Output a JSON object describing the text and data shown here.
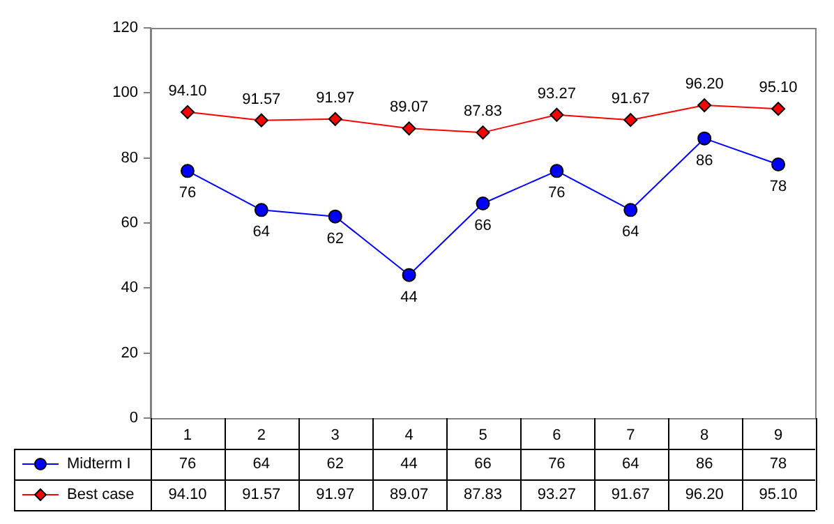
{
  "chart_data": {
    "type": "line",
    "categories": [
      "1",
      "2",
      "3",
      "4",
      "5",
      "6",
      "7",
      "8",
      "9"
    ],
    "series": [
      {
        "name": "Midterm I",
        "color": "#0000ff",
        "marker": "circle",
        "values": [
          76,
          64,
          62,
          44,
          66,
          76,
          64,
          86,
          78
        ],
        "value_labels": [
          "76",
          "64",
          "62",
          "44",
          "66",
          "76",
          "64",
          "86",
          "78"
        ]
      },
      {
        "name": "Best case",
        "color": "#ff0000",
        "marker": "diamond",
        "values": [
          94.1,
          91.57,
          91.97,
          89.07,
          87.83,
          93.27,
          91.67,
          96.2,
          95.1
        ],
        "value_labels": [
          "94.10",
          "91.57",
          "91.97",
          "89.07",
          "87.83",
          "93.27",
          "91.67",
          "96.20",
          "95.10"
        ]
      }
    ],
    "ylim": [
      0,
      120
    ],
    "yticks": [
      0,
      20,
      40,
      60,
      80,
      100,
      120
    ],
    "grid": false,
    "legend": "bottom",
    "line_style": "solid"
  }
}
